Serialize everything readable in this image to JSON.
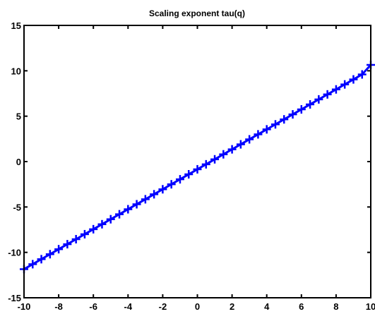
{
  "chart_data": {
    "type": "line",
    "title": "Scaling exponent tau(q)",
    "xlabel": "",
    "ylabel": "",
    "xlim": [
      -10,
      10
    ],
    "ylim": [
      -15,
      15
    ],
    "xticks": [
      -10,
      -8,
      -6,
      -4,
      -2,
      0,
      2,
      4,
      6,
      8,
      10
    ],
    "yticks": [
      -15,
      -10,
      -5,
      0,
      5,
      10,
      15
    ],
    "xtick_labels": [
      "-10",
      "-8",
      "-6",
      "-4",
      "-2",
      "0",
      "2",
      "4",
      "6",
      "8",
      "10"
    ],
    "ytick_labels": [
      "-15",
      "-10",
      "-5",
      "0",
      "5",
      "10",
      "15"
    ],
    "grid": false,
    "marker": "+",
    "series_color": "#0000ff",
    "series": [
      {
        "x": [
          -10,
          -9.5,
          -9,
          -8.5,
          -8,
          -7.5,
          -7,
          -6.5,
          -6,
          -5.5,
          -5,
          -4.5,
          -4,
          -3.5,
          -3,
          -2.5,
          -2,
          -1.5,
          -1,
          -0.5,
          0,
          0.5,
          1,
          1.5,
          2,
          2.5,
          3,
          3.5,
          4,
          4.5,
          5,
          5.5,
          6,
          6.5,
          7,
          7.5,
          8,
          8.5,
          9,
          9.5,
          10
        ],
        "y": [
          -11.85,
          -11.3,
          -10.75,
          -10.2,
          -9.65,
          -9.1,
          -8.55,
          -8.0,
          -7.45,
          -6.9,
          -6.35,
          -5.8,
          -5.25,
          -4.7,
          -4.15,
          -3.6,
          -3.05,
          -2.5,
          -1.95,
          -1.4,
          -0.85,
          -0.3,
          0.25,
          0.8,
          1.35,
          1.9,
          2.45,
          3.0,
          3.55,
          4.1,
          4.65,
          5.2,
          5.75,
          6.3,
          6.85,
          7.4,
          7.95,
          8.5,
          9.05,
          9.6,
          10.65
        ]
      }
    ]
  }
}
